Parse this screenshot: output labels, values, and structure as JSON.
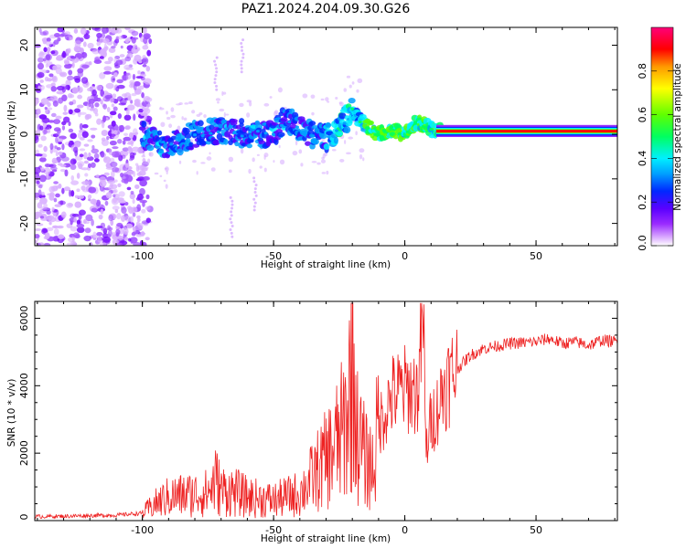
{
  "title": "PAZ1.2024.204.09.30.G26",
  "chart_data": [
    {
      "type": "heatmap",
      "xlabel": "Height of straight line (km)",
      "ylabel": "Frequency (Hz)",
      "xlim": [
        -141,
        81
      ],
      "ylim": [
        -25,
        24
      ],
      "xticks": [
        -100,
        -50,
        0,
        50
      ],
      "yticks": [
        20,
        10,
        0,
        -10,
        -20
      ],
      "colorbar": {
        "label": "Normalized spectral amplitude",
        "range": [
          0,
          1
        ],
        "ticks": [
          "0.0",
          "0.2",
          "0.4",
          "0.6",
          "0.8"
        ],
        "colors": [
          "#ffffff",
          "#d9a8ff",
          "#9a2bff",
          "#5a00ff",
          "#0028ff",
          "#00a0ff",
          "#00f0ff",
          "#00ff60",
          "#60ff00",
          "#ffff00",
          "#ff9900",
          "#ff0000",
          "#ff007a"
        ]
      },
      "ridge": {
        "description_points_x": [
          -100,
          -90,
          -80,
          -70,
          -60,
          -50,
          -45,
          -40,
          -30,
          -25,
          -20,
          -15,
          -10,
          -5,
          0,
          5,
          10,
          20,
          40,
          60,
          81
        ],
        "description_points_y": [
          0,
          -3,
          0,
          1,
          0,
          0,
          4,
          1,
          -1,
          2,
          5,
          2,
          0,
          1,
          0,
          3,
          1,
          1,
          1,
          1,
          1
        ]
      }
    },
    {
      "type": "line",
      "xlabel": "Height of straight line (km)",
      "ylabel": "SNR (10 * v/v)",
      "xlim": [
        -141,
        81
      ],
      "ylim": [
        0,
        6500
      ],
      "xticks": [
        -100,
        -50,
        0,
        50
      ],
      "yticks": [
        0,
        2000,
        4000,
        6000
      ],
      "color": "#ee2222",
      "points": [
        [
          -141,
          120
        ],
        [
          -130,
          130
        ],
        [
          -120,
          150
        ],
        [
          -110,
          160
        ],
        [
          -100,
          220
        ],
        [
          -95,
          500
        ],
        [
          -90,
          700
        ],
        [
          -85,
          750
        ],
        [
          -80,
          780
        ],
        [
          -75,
          820
        ],
        [
          -72,
          1200
        ],
        [
          -70,
          900
        ],
        [
          -65,
          850
        ],
        [
          -60,
          700
        ],
        [
          -55,
          650
        ],
        [
          -50,
          600
        ],
        [
          -45,
          700
        ],
        [
          -40,
          800
        ],
        [
          -35,
          1300
        ],
        [
          -30,
          1800
        ],
        [
          -25,
          2400
        ],
        [
          -22,
          3000
        ],
        [
          -20,
          5000
        ],
        [
          -18,
          2500
        ],
        [
          -15,
          1800
        ],
        [
          -12,
          1600
        ],
        [
          -10,
          2800
        ],
        [
          -5,
          3700
        ],
        [
          0,
          3900
        ],
        [
          5,
          3800
        ],
        [
          7,
          6300
        ],
        [
          8,
          2000
        ],
        [
          10,
          3000
        ],
        [
          12,
          3200
        ],
        [
          15,
          4000
        ],
        [
          20,
          4500
        ],
        [
          25,
          4900
        ],
        [
          30,
          5100
        ],
        [
          40,
          5250
        ],
        [
          50,
          5300
        ],
        [
          55,
          5400
        ],
        [
          60,
          5250
        ],
        [
          65,
          5300
        ],
        [
          70,
          5200
        ],
        [
          75,
          5350
        ],
        [
          81,
          5300
        ]
      ]
    }
  ]
}
